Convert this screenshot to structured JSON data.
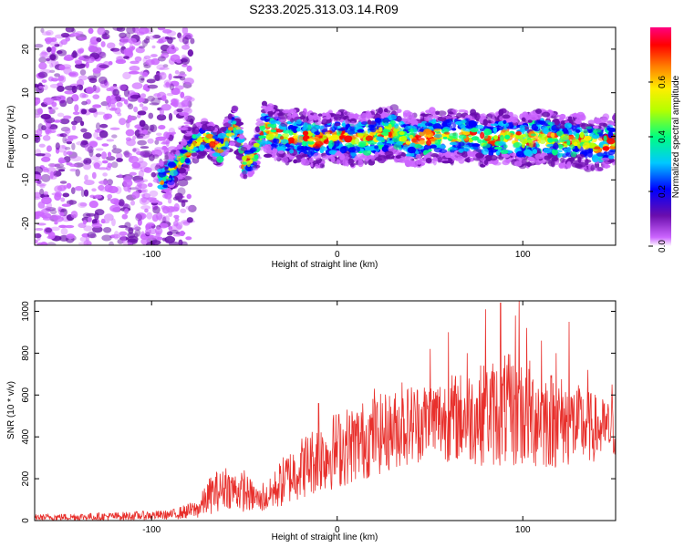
{
  "title": "S233.2025.313.03.14.R09",
  "chart_data": [
    {
      "type": "heatmap",
      "title": "S233.2025.313.03.14.R09",
      "xlabel": "Height of straight line (km)",
      "ylabel": "Frequency (Hz)",
      "xlim": [
        -163,
        150
      ],
      "ylim": [
        -25,
        25
      ],
      "x_ticks": [
        -100,
        0,
        100
      ],
      "y_ticks": [
        -20,
        -10,
        0,
        10,
        20
      ],
      "grid": false,
      "colorbar": {
        "label": "Normalized spectral amplitude",
        "range": [
          0,
          0.8
        ],
        "ticks": [
          0.0,
          0.2,
          0.4,
          0.6
        ],
        "colors": [
          "#ffffff",
          "#cc66ff",
          "#6a0dad",
          "#0000ff",
          "#00c8ff",
          "#00ff80",
          "#b4ff00",
          "#ffee00",
          "#ff8000",
          "#ff0000",
          "#ff0080"
        ]
      },
      "trace": {
        "x": [
          -93,
          -85,
          -78,
          -70,
          -63,
          -55,
          -50,
          -45,
          -40,
          -30,
          -20,
          -10,
          0,
          10,
          20,
          30,
          40,
          50,
          60,
          70,
          80,
          90,
          100,
          110,
          120,
          130,
          140,
          150
        ],
        "freq_hz": [
          -10,
          -6,
          -2,
          0,
          -3,
          3,
          -6,
          -5,
          2,
          0,
          0,
          -1,
          0,
          -1,
          0,
          1,
          -1,
          0,
          0,
          0,
          -1,
          0,
          -1,
          0,
          -1,
          -1,
          -2,
          -1
        ]
      }
    },
    {
      "type": "line",
      "xlabel": "Height of straight line (km)",
      "ylabel": "SNR (10 * v/v)",
      "xlim": [
        -163,
        150
      ],
      "ylim": [
        0,
        1050
      ],
      "x_ticks": [
        -100,
        0,
        100
      ],
      "y_ticks": [
        0,
        200,
        400,
        600,
        800,
        1000
      ],
      "grid": false,
      "color": "#e8302c",
      "envelope": {
        "x": [
          -163,
          -120,
          -90,
          -75,
          -68,
          -60,
          -50,
          -40,
          -30,
          -20,
          -10,
          0,
          10,
          20,
          30,
          40,
          50,
          60,
          70,
          80,
          90,
          100,
          110,
          120,
          130,
          140,
          150
        ],
        "low": [
          0,
          0,
          5,
          10,
          30,
          60,
          40,
          40,
          60,
          100,
          130,
          150,
          180,
          210,
          240,
          270,
          280,
          280,
          270,
          260,
          250,
          240,
          240,
          250,
          260,
          280,
          300
        ],
        "high": [
          30,
          40,
          50,
          100,
          220,
          250,
          230,
          140,
          300,
          400,
          470,
          530,
          560,
          600,
          620,
          660,
          680,
          700,
          720,
          760,
          800,
          790,
          750,
          700,
          650,
          600,
          560
        ],
        "peaks_x": [
          -65,
          -60,
          -50,
          -40,
          -10,
          20,
          35,
          50,
          60,
          70,
          80,
          88,
          96,
          98,
          102,
          110,
          118,
          125,
          135,
          148
        ],
        "peaks_y": [
          230,
          250,
          240,
          180,
          560,
          630,
          660,
          820,
          900,
          800,
          1010,
          1040,
          980,
          1050,
          920,
          860,
          800,
          950,
          720,
          650
        ]
      }
    }
  ]
}
